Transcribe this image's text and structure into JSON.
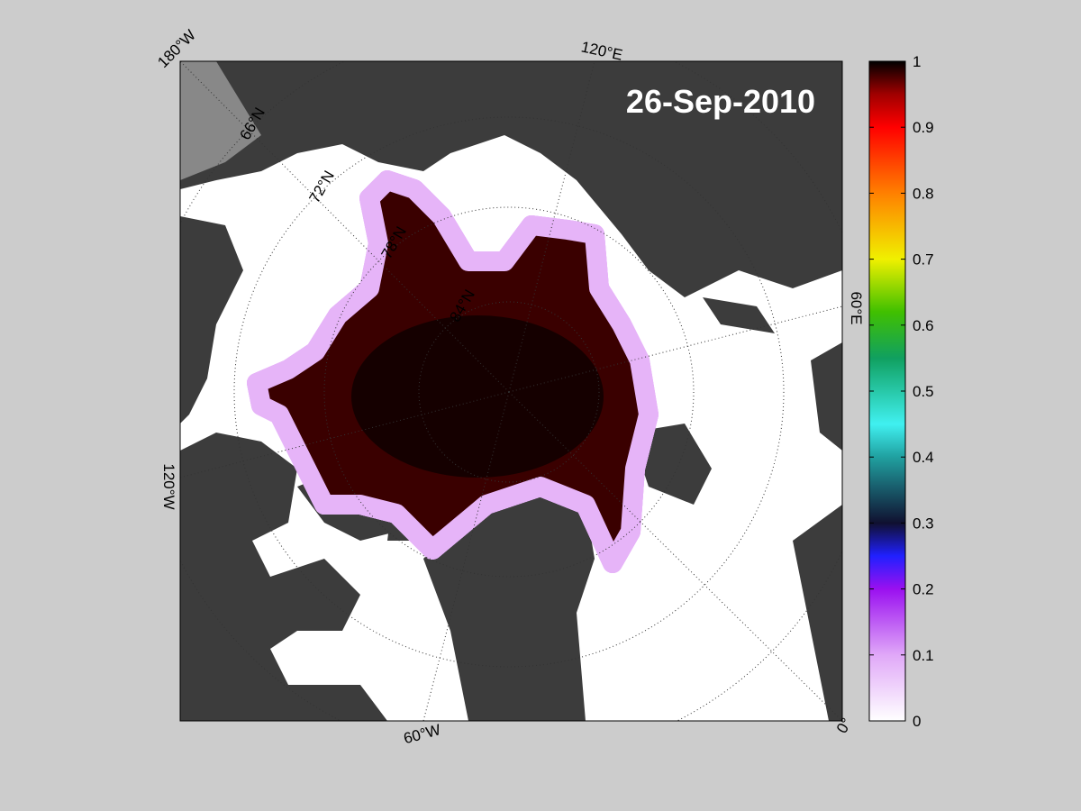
{
  "date": "26-Sep-2010",
  "longitude_labels": [
    "180°W",
    "120°E",
    "60°E",
    "0°",
    "60°W",
    "120°W"
  ],
  "latitude_labels": [
    "66°N",
    "72°N",
    "78°N",
    "84°N"
  ],
  "colorbar": {
    "lim": [
      0,
      1
    ],
    "ticks": [
      0,
      0.1,
      0.2,
      0.3,
      0.4,
      0.5,
      0.6,
      0.7,
      0.8,
      0.9,
      1
    ]
  }
}
